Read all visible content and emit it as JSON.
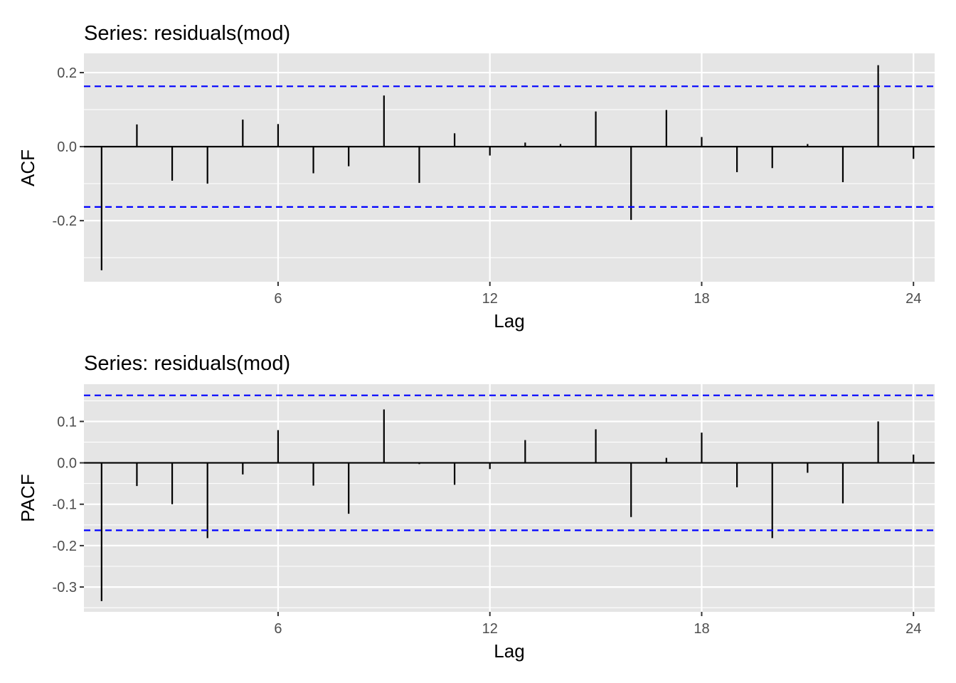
{
  "colors": {
    "panel_background": "#e5e5e5",
    "gridline": "#ffffff",
    "bar": "#000000",
    "confidence_line": "#0000ff",
    "tick_text": "#4d4d4d"
  },
  "chart_data": [
    {
      "type": "bar",
      "title": "Series: residuals(mod)",
      "xlabel": "Lag",
      "ylabel": "ACF",
      "x": [
        1,
        2,
        3,
        4,
        5,
        6,
        7,
        8,
        9,
        10,
        11,
        12,
        13,
        14,
        15,
        16,
        17,
        18,
        19,
        20,
        21,
        22,
        23,
        24
      ],
      "values": [
        -0.334,
        0.06,
        -0.092,
        -0.1,
        0.073,
        0.061,
        -0.072,
        -0.053,
        0.138,
        -0.098,
        0.036,
        -0.024,
        0.011,
        0.007,
        0.095,
        -0.198,
        0.099,
        0.026,
        -0.069,
        -0.058,
        0.007,
        -0.096,
        0.22,
        -0.033
      ],
      "confidence_bound": 0.163,
      "xlim": [
        0.5,
        24.6
      ],
      "ylim": [
        -0.365,
        0.252
      ],
      "x_ticks": [
        6,
        12,
        18,
        24
      ],
      "x_tick_labels": [
        "6",
        "12",
        "18",
        "24"
      ],
      "y_ticks": [
        -0.2,
        0.0,
        0.2
      ],
      "y_tick_labels": [
        "-0.2",
        "0.0",
        "0.2"
      ],
      "y_minor_ticks": [
        -0.3,
        -0.1,
        0.1
      ],
      "grid": true
    },
    {
      "type": "bar",
      "title": "Series: residuals(mod)",
      "xlabel": "Lag",
      "ylabel": "PACF",
      "x": [
        1,
        2,
        3,
        4,
        5,
        6,
        7,
        8,
        9,
        10,
        11,
        12,
        13,
        14,
        15,
        16,
        17,
        18,
        19,
        20,
        21,
        22,
        23,
        24
      ],
      "values": [
        -0.334,
        -0.056,
        -0.1,
        -0.182,
        -0.028,
        0.079,
        -0.055,
        -0.123,
        0.129,
        -0.003,
        -0.053,
        -0.015,
        0.055,
        0.001,
        0.081,
        -0.131,
        0.012,
        0.073,
        -0.059,
        -0.182,
        -0.024,
        -0.098,
        0.1,
        0.02
      ],
      "confidence_bound": 0.163,
      "xlim": [
        0.5,
        24.6
      ],
      "ylim": [
        -0.36,
        0.19
      ],
      "x_ticks": [
        6,
        12,
        18,
        24
      ],
      "x_tick_labels": [
        "6",
        "12",
        "18",
        "24"
      ],
      "y_ticks": [
        -0.3,
        -0.2,
        -0.1,
        0.0,
        0.1
      ],
      "y_tick_labels": [
        "-0.3",
        "-0.2",
        "-0.1",
        "0.0",
        "0.1"
      ],
      "y_minor_ticks": [
        -0.35,
        -0.25,
        -0.15,
        -0.05,
        0.05,
        0.15
      ],
      "grid": true
    }
  ]
}
